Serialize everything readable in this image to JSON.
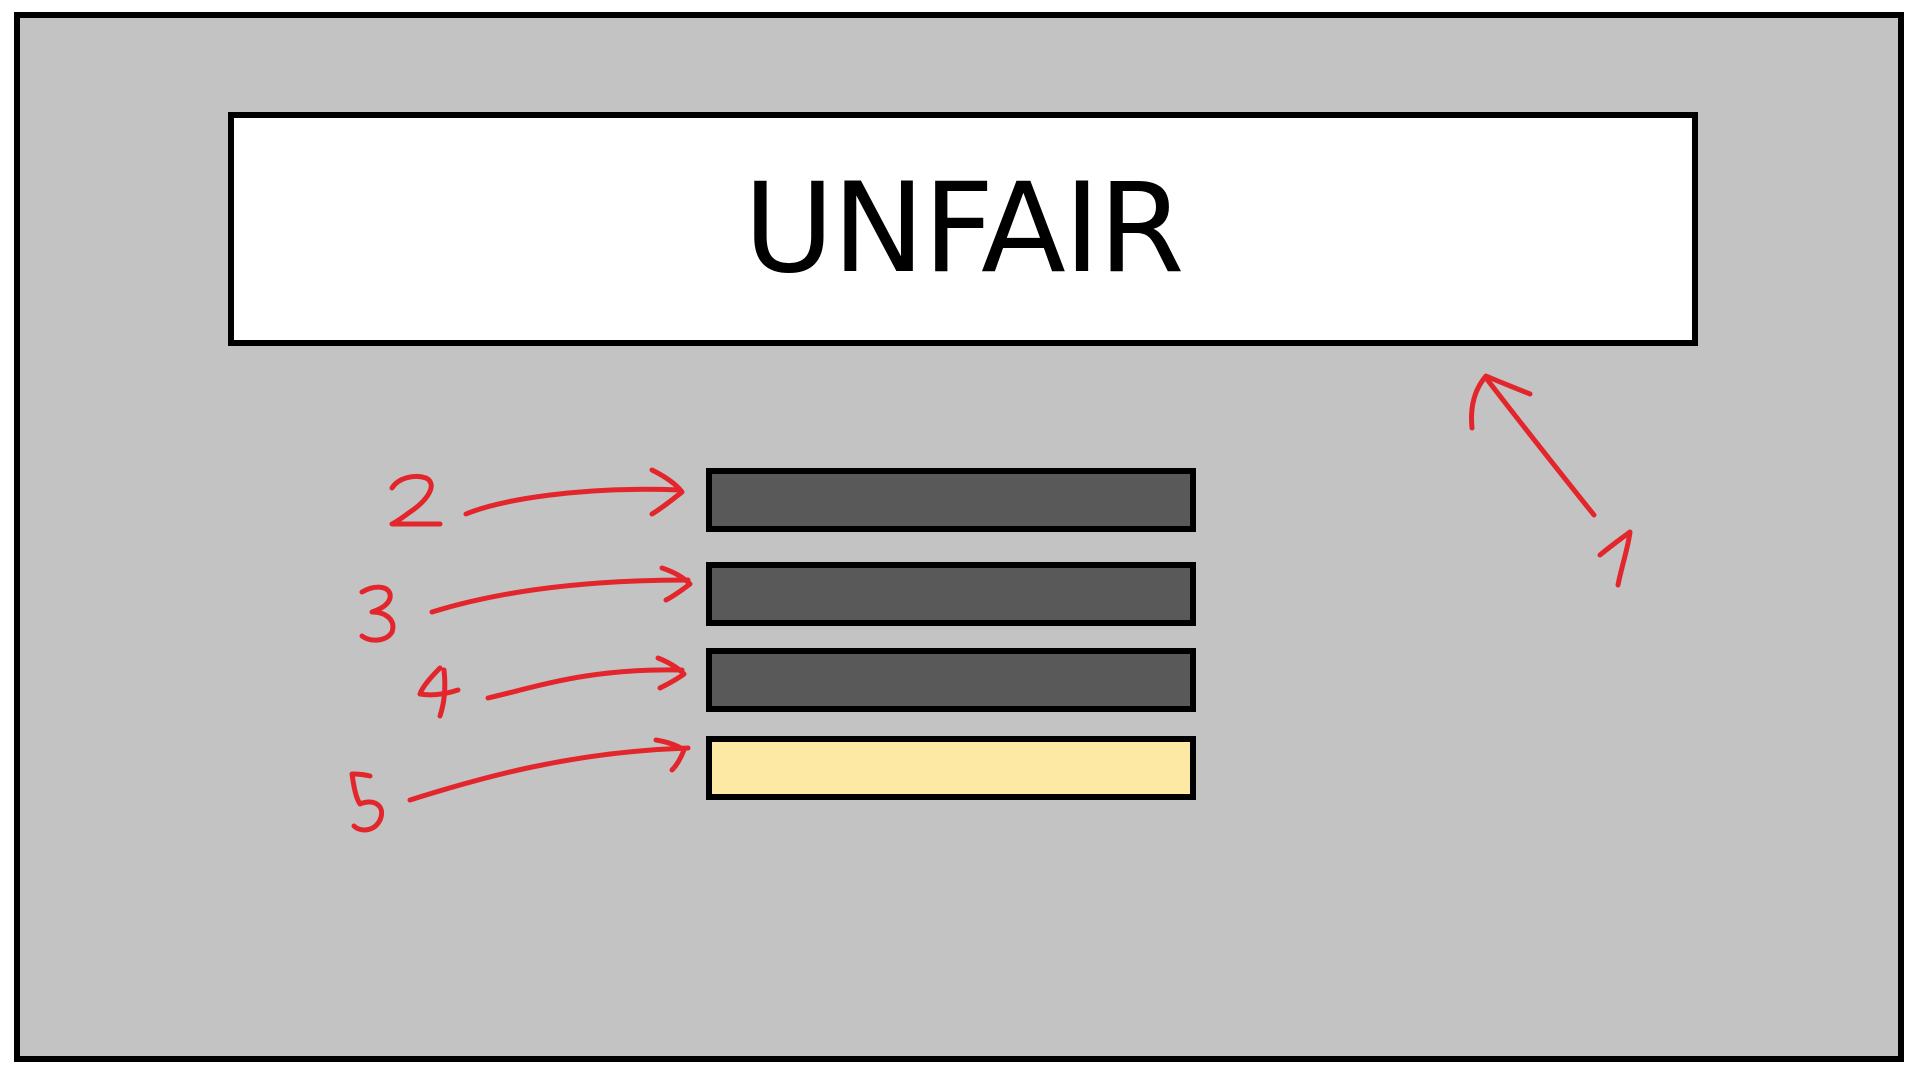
{
  "title": "UNFAIR",
  "colors": {
    "frame_bg": "#c3c3c3",
    "title_bg": "#ffffff",
    "dark_bar": "#595959",
    "highlight_bar": "#fde9a4",
    "annotation": "#e3262b"
  },
  "bars": [
    {
      "label": "2",
      "fill": "dark"
    },
    {
      "label": "3",
      "fill": "dark"
    },
    {
      "label": "4",
      "fill": "dark"
    },
    {
      "label": "5",
      "fill": "highlight"
    }
  ],
  "title_annotation": {
    "label": "1"
  }
}
